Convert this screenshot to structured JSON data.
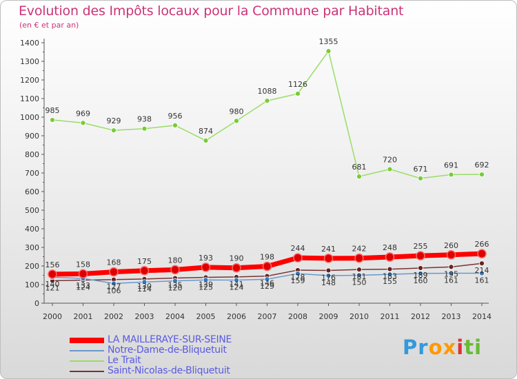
{
  "header": {
    "title": "Evolution des Impôts locaux pour la Commune par Habitant",
    "subtitle": "(en € et par an)"
  },
  "brand": {
    "logo_text": "Proxiti"
  },
  "chart_data": {
    "type": "line",
    "title": "Evolution des Impôts locaux pour la Commune par Habitant",
    "ylabel": "(en € et par an)",
    "xlabel": "",
    "ylim": [
      0,
      1400
    ],
    "yticks": [
      0,
      100,
      200,
      300,
      400,
      500,
      600,
      700,
      800,
      900,
      1000,
      1100,
      1200,
      1300,
      1400
    ],
    "x": [
      "2000",
      "2001",
      "2002",
      "2003",
      "2004",
      "2005",
      "2006",
      "2007",
      "2008",
      "2009",
      "2010",
      "2011",
      "2012",
      "2013",
      "2014"
    ],
    "grid": false,
    "legend": "bottom-left",
    "series": [
      {
        "name": "LA MAILLERAYE-SUR-SEINE",
        "color": "#ff0000",
        "marker": "#dd0000",
        "width": 7,
        "values": [
          156,
          158,
          168,
          175,
          180,
          193,
          190,
          198,
          244,
          241,
          242,
          248,
          255,
          260,
          266
        ]
      },
      {
        "name": "Notre-Dame-de-Bliquetuit",
        "color": "#6699cc",
        "marker": "#3377bb",
        "width": 1.5,
        "values": [
          140,
          133,
          106,
          114,
          120,
          125,
          124,
          129,
          159,
          148,
          150,
          155,
          160,
          161,
          161
        ]
      },
      {
        "name": "Le Trait",
        "color": "#99dd66",
        "marker": "#77cc33",
        "width": 1.5,
        "values": [
          985,
          969,
          929,
          938,
          956,
          874,
          980,
          1088,
          1126,
          1355,
          681,
          720,
          671,
          691,
          692
        ]
      },
      {
        "name": "Saint-Nicolas-de-Bliquetuit",
        "color": "#773333",
        "marker": "#662222",
        "width": 1.5,
        "values": [
          121,
          124,
          127,
          130,
          135,
          139,
          141,
          146,
          178,
          176,
          181,
          183,
          189,
          195,
          214
        ]
      }
    ]
  }
}
